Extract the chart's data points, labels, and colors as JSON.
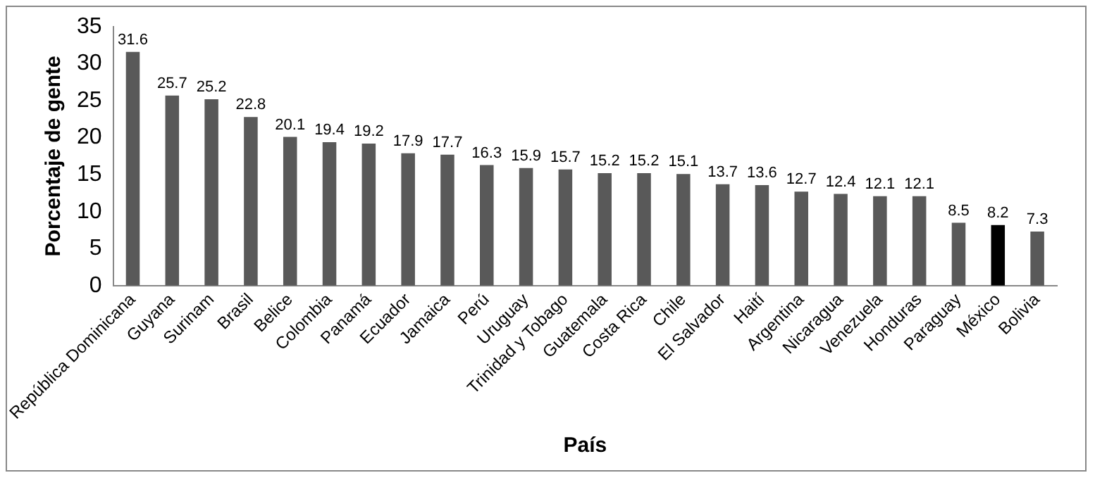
{
  "chart_data": {
    "type": "bar",
    "xlabel": "País",
    "ylabel": "Porcentaje de gente",
    "categories": [
      "República Dominicana",
      "Guyana",
      "Surinam",
      "Brasil",
      "Belice",
      "Colombia",
      "Panamá",
      "Ecuador",
      "Jamaica",
      "Perú",
      "Uruguay",
      "Trinidad y Tobago",
      "Guatemala",
      "Costa Rica",
      "Chile",
      "El Salvador",
      "Haití",
      "Argentina",
      "Nicaragua",
      "Venezuela",
      "Honduras",
      "Paraguay",
      "México",
      "Bolivia"
    ],
    "values": [
      31.6,
      25.7,
      25.2,
      22.8,
      20.1,
      19.4,
      19.2,
      17.9,
      17.7,
      16.3,
      15.9,
      15.7,
      15.2,
      15.2,
      15.1,
      13.7,
      13.6,
      12.7,
      12.4,
      12.1,
      12.1,
      8.5,
      8.2,
      7.3
    ],
    "colors": [
      "#595959",
      "#595959",
      "#595959",
      "#595959",
      "#595959",
      "#595959",
      "#595959",
      "#595959",
      "#595959",
      "#595959",
      "#595959",
      "#595959",
      "#595959",
      "#595959",
      "#595959",
      "#595959",
      "#595959",
      "#595959",
      "#595959",
      "#595959",
      "#595959",
      "#595959",
      "#000000",
      "#595959"
    ],
    "ylim": [
      0,
      35
    ],
    "yticks": [
      0,
      5,
      10,
      15,
      20,
      25,
      30,
      35
    ],
    "grid": false,
    "legend": false,
    "data_labels": true
  }
}
